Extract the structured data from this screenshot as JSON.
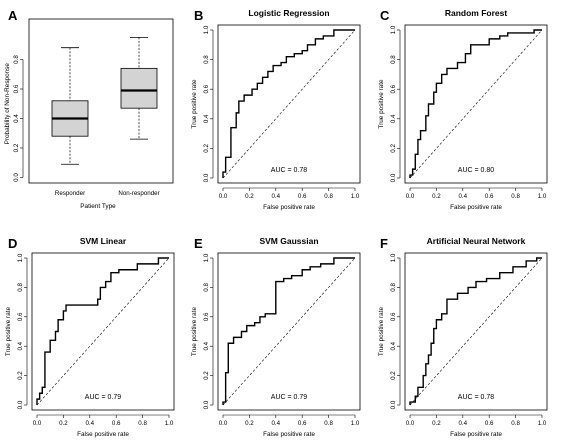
{
  "panels": [
    {
      "letter": "A",
      "title": ""
    },
    {
      "letter": "B",
      "title": "Logistic Regression"
    },
    {
      "letter": "C",
      "title": "Random Forest"
    },
    {
      "letter": "D",
      "title": "SVM Linear"
    },
    {
      "letter": "E",
      "title": "SVM Gaussian"
    },
    {
      "letter": "F",
      "title": "Artificial Neural Network"
    }
  ],
  "chart_data": [
    {
      "type": "box",
      "panel": "A",
      "ylabel": "Probability of Non-Response",
      "xlabel": "Patient Type",
      "categories": [
        "Responder",
        "Non-responder"
      ],
      "ylim": [
        0,
        1
      ],
      "yticks": [
        "0.0",
        "0.2",
        "0.4",
        "0.6",
        "0.8"
      ],
      "boxes": [
        {
          "name": "Responder",
          "min": 0.09,
          "q1": 0.28,
          "median": 0.4,
          "q3": 0.52,
          "max": 0.88
        },
        {
          "name": "Non-responder",
          "min": 0.26,
          "q1": 0.47,
          "median": 0.59,
          "q3": 0.74,
          "max": 0.95
        }
      ],
      "colors": {
        "box_fill": "#d3d3d3",
        "stroke": "#000000"
      }
    },
    {
      "type": "line",
      "panel": "B",
      "title": "Logistic Regression",
      "xlabel": "False positive rate",
      "ylabel": "True positive rate",
      "xlim": [
        0,
        1
      ],
      "ylim": [
        0,
        1
      ],
      "ticks": [
        "0.0",
        "0.2",
        "0.4",
        "0.6",
        "0.8",
        "1.0"
      ],
      "auc_text": "AUC = 0.78",
      "diagonal": true,
      "roc": [
        [
          0,
          0
        ],
        [
          0,
          0.04
        ],
        [
          0.02,
          0.04
        ],
        [
          0.02,
          0.14
        ],
        [
          0.06,
          0.14
        ],
        [
          0.06,
          0.34
        ],
        [
          0.1,
          0.34
        ],
        [
          0.1,
          0.44
        ],
        [
          0.12,
          0.44
        ],
        [
          0.12,
          0.52
        ],
        [
          0.16,
          0.52
        ],
        [
          0.16,
          0.56
        ],
        [
          0.22,
          0.56
        ],
        [
          0.22,
          0.6
        ],
        [
          0.26,
          0.6
        ],
        [
          0.26,
          0.64
        ],
        [
          0.3,
          0.64
        ],
        [
          0.3,
          0.68
        ],
        [
          0.34,
          0.68
        ],
        [
          0.34,
          0.72
        ],
        [
          0.38,
          0.72
        ],
        [
          0.38,
          0.76
        ],
        [
          0.44,
          0.76
        ],
        [
          0.44,
          0.78
        ],
        [
          0.48,
          0.78
        ],
        [
          0.48,
          0.82
        ],
        [
          0.54,
          0.82
        ],
        [
          0.54,
          0.84
        ],
        [
          0.6,
          0.84
        ],
        [
          0.6,
          0.86
        ],
        [
          0.64,
          0.86
        ],
        [
          0.64,
          0.9
        ],
        [
          0.7,
          0.9
        ],
        [
          0.7,
          0.94
        ],
        [
          0.76,
          0.94
        ],
        [
          0.76,
          0.96
        ],
        [
          0.84,
          0.96
        ],
        [
          0.84,
          1.0
        ],
        [
          1.0,
          1.0
        ]
      ]
    },
    {
      "type": "line",
      "panel": "C",
      "title": "Random Forest",
      "xlabel": "False positive rate",
      "ylabel": "True positive rate",
      "xlim": [
        0,
        1
      ],
      "ylim": [
        0,
        1
      ],
      "ticks": [
        "0.0",
        "0.2",
        "0.4",
        "0.6",
        "0.8",
        "1.0"
      ],
      "auc_text": "AUC = 0.80",
      "diagonal": true,
      "roc": [
        [
          0,
          0
        ],
        [
          0,
          0.02
        ],
        [
          0.02,
          0.02
        ],
        [
          0.02,
          0.06
        ],
        [
          0.04,
          0.06
        ],
        [
          0.04,
          0.16
        ],
        [
          0.06,
          0.16
        ],
        [
          0.06,
          0.26
        ],
        [
          0.08,
          0.26
        ],
        [
          0.08,
          0.32
        ],
        [
          0.12,
          0.32
        ],
        [
          0.12,
          0.42
        ],
        [
          0.14,
          0.42
        ],
        [
          0.14,
          0.5
        ],
        [
          0.18,
          0.5
        ],
        [
          0.18,
          0.58
        ],
        [
          0.2,
          0.58
        ],
        [
          0.2,
          0.64
        ],
        [
          0.24,
          0.64
        ],
        [
          0.24,
          0.7
        ],
        [
          0.28,
          0.7
        ],
        [
          0.28,
          0.74
        ],
        [
          0.36,
          0.74
        ],
        [
          0.36,
          0.78
        ],
        [
          0.42,
          0.78
        ],
        [
          0.42,
          0.84
        ],
        [
          0.46,
          0.84
        ],
        [
          0.46,
          0.9
        ],
        [
          0.6,
          0.9
        ],
        [
          0.6,
          0.94
        ],
        [
          0.68,
          0.94
        ],
        [
          0.68,
          0.96
        ],
        [
          0.74,
          0.96
        ],
        [
          0.74,
          0.98
        ],
        [
          0.94,
          0.98
        ],
        [
          0.94,
          1.0
        ],
        [
          1.0,
          1.0
        ]
      ]
    },
    {
      "type": "line",
      "panel": "D",
      "title": "SVM Linear",
      "xlabel": "False positive rate",
      "ylabel": "True positive rate",
      "xlim": [
        0,
        1
      ],
      "ylim": [
        0,
        1
      ],
      "ticks": [
        "0.0",
        "0.2",
        "0.4",
        "0.6",
        "0.8",
        "1.0"
      ],
      "auc_text": "AUC = 0.79",
      "diagonal": true,
      "roc": [
        [
          0,
          0
        ],
        [
          0,
          0.04
        ],
        [
          0.02,
          0.04
        ],
        [
          0.02,
          0.08
        ],
        [
          0.04,
          0.08
        ],
        [
          0.04,
          0.12
        ],
        [
          0.06,
          0.12
        ],
        [
          0.06,
          0.36
        ],
        [
          0.1,
          0.36
        ],
        [
          0.1,
          0.44
        ],
        [
          0.14,
          0.44
        ],
        [
          0.14,
          0.5
        ],
        [
          0.16,
          0.5
        ],
        [
          0.16,
          0.58
        ],
        [
          0.2,
          0.58
        ],
        [
          0.2,
          0.64
        ],
        [
          0.22,
          0.64
        ],
        [
          0.22,
          0.68
        ],
        [
          0.46,
          0.68
        ],
        [
          0.46,
          0.72
        ],
        [
          0.48,
          0.72
        ],
        [
          0.48,
          0.8
        ],
        [
          0.52,
          0.8
        ],
        [
          0.52,
          0.84
        ],
        [
          0.56,
          0.84
        ],
        [
          0.56,
          0.9
        ],
        [
          0.62,
          0.9
        ],
        [
          0.62,
          0.92
        ],
        [
          0.76,
          0.92
        ],
        [
          0.76,
          0.96
        ],
        [
          0.92,
          0.96
        ],
        [
          0.92,
          1.0
        ],
        [
          1.0,
          1.0
        ]
      ]
    },
    {
      "type": "line",
      "panel": "E",
      "title": "SVM Gaussian",
      "xlabel": "False positive rate",
      "ylabel": "True positive rate",
      "xlim": [
        0,
        1
      ],
      "ylim": [
        0,
        1
      ],
      "ticks": [
        "0.0",
        "0.2",
        "0.4",
        "0.6",
        "0.8",
        "1.0"
      ],
      "auc_text": "AUC = 0.79",
      "diagonal": true,
      "roc": [
        [
          0,
          0
        ],
        [
          0,
          0.02
        ],
        [
          0.02,
          0.02
        ],
        [
          0.02,
          0.22
        ],
        [
          0.04,
          0.22
        ],
        [
          0.04,
          0.42
        ],
        [
          0.08,
          0.42
        ],
        [
          0.08,
          0.46
        ],
        [
          0.14,
          0.46
        ],
        [
          0.14,
          0.5
        ],
        [
          0.18,
          0.5
        ],
        [
          0.18,
          0.54
        ],
        [
          0.24,
          0.54
        ],
        [
          0.24,
          0.56
        ],
        [
          0.28,
          0.56
        ],
        [
          0.28,
          0.6
        ],
        [
          0.32,
          0.6
        ],
        [
          0.32,
          0.62
        ],
        [
          0.4,
          0.62
        ],
        [
          0.4,
          0.84
        ],
        [
          0.46,
          0.84
        ],
        [
          0.46,
          0.86
        ],
        [
          0.52,
          0.86
        ],
        [
          0.52,
          0.88
        ],
        [
          0.6,
          0.88
        ],
        [
          0.6,
          0.92
        ],
        [
          0.66,
          0.92
        ],
        [
          0.66,
          0.94
        ],
        [
          0.74,
          0.94
        ],
        [
          0.74,
          0.96
        ],
        [
          0.84,
          0.96
        ],
        [
          0.84,
          1.0
        ],
        [
          1.0,
          1.0
        ]
      ]
    },
    {
      "type": "line",
      "panel": "F",
      "title": "Artificial Neural Network",
      "xlabel": "False positive rate",
      "ylabel": "True positive rate",
      "xlim": [
        0,
        1
      ],
      "ylim": [
        0,
        1
      ],
      "ticks": [
        "0.0",
        "0.2",
        "0.4",
        "0.6",
        "0.8",
        "1.0"
      ],
      "auc_text": "AUC = 0.78",
      "diagonal": true,
      "roc": [
        [
          0,
          0
        ],
        [
          0,
          0.02
        ],
        [
          0.04,
          0.02
        ],
        [
          0.04,
          0.06
        ],
        [
          0.06,
          0.06
        ],
        [
          0.06,
          0.12
        ],
        [
          0.1,
          0.12
        ],
        [
          0.1,
          0.2
        ],
        [
          0.12,
          0.2
        ],
        [
          0.12,
          0.28
        ],
        [
          0.14,
          0.28
        ],
        [
          0.14,
          0.34
        ],
        [
          0.16,
          0.34
        ],
        [
          0.16,
          0.42
        ],
        [
          0.18,
          0.42
        ],
        [
          0.18,
          0.52
        ],
        [
          0.2,
          0.52
        ],
        [
          0.2,
          0.58
        ],
        [
          0.24,
          0.58
        ],
        [
          0.24,
          0.62
        ],
        [
          0.28,
          0.62
        ],
        [
          0.28,
          0.72
        ],
        [
          0.36,
          0.72
        ],
        [
          0.36,
          0.76
        ],
        [
          0.44,
          0.76
        ],
        [
          0.44,
          0.8
        ],
        [
          0.5,
          0.8
        ],
        [
          0.5,
          0.84
        ],
        [
          0.58,
          0.84
        ],
        [
          0.58,
          0.86
        ],
        [
          0.68,
          0.86
        ],
        [
          0.68,
          0.9
        ],
        [
          0.78,
          0.9
        ],
        [
          0.78,
          0.94
        ],
        [
          0.88,
          0.94
        ],
        [
          0.88,
          0.98
        ],
        [
          0.96,
          0.98
        ],
        [
          0.96,
          1.0
        ],
        [
          1.0,
          1.0
        ]
      ]
    }
  ]
}
